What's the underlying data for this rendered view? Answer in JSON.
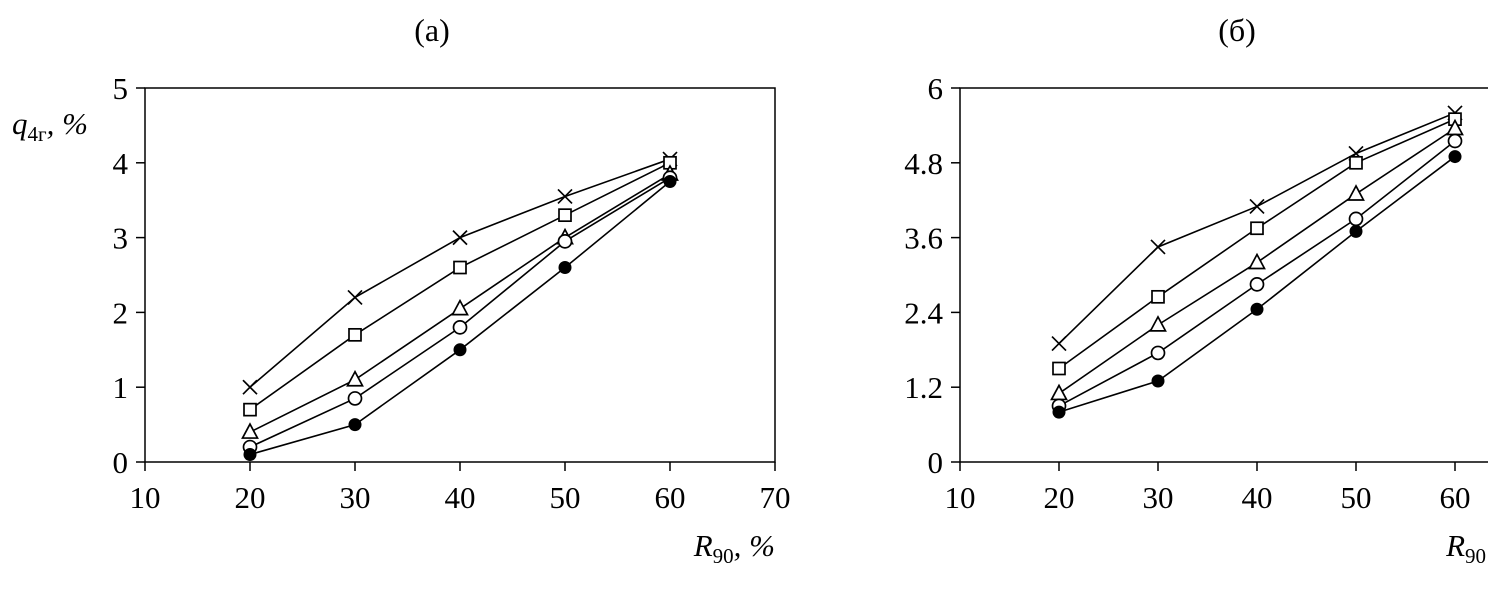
{
  "page": {
    "background": "#ffffff",
    "ink": "#000000"
  },
  "chart_data": [
    {
      "type": "line",
      "title": "(а)",
      "ylabel": {
        "main": "q",
        "sub": "4г",
        "suffix": ", %"
      },
      "xlabel": {
        "main": "R",
        "sub": "90",
        "suffix": ", %"
      },
      "x": [
        20,
        30,
        40,
        50,
        60
      ],
      "xlim": [
        10,
        70
      ],
      "ylim": [
        0,
        5
      ],
      "xticks": [
        10,
        20,
        30,
        40,
        50,
        60,
        70
      ],
      "yticks": [
        0,
        1,
        2,
        3,
        4,
        5
      ],
      "grid": false,
      "legend": "none",
      "color": "#000000",
      "series": [
        {
          "name": "cross",
          "marker": "x",
          "values": [
            1.0,
            2.2,
            3.0,
            3.55,
            4.05
          ]
        },
        {
          "name": "open-square",
          "marker": "square",
          "values": [
            0.7,
            1.7,
            2.6,
            3.3,
            4.0
          ]
        },
        {
          "name": "open-triangle",
          "marker": "triangle",
          "values": [
            0.4,
            1.1,
            2.05,
            3.0,
            3.85
          ]
        },
        {
          "name": "open-circle",
          "marker": "circle-open",
          "values": [
            0.2,
            0.85,
            1.8,
            2.95,
            3.8
          ]
        },
        {
          "name": "filled-circle",
          "marker": "circle-filled",
          "values": [
            0.1,
            0.5,
            1.5,
            2.6,
            3.75
          ]
        }
      ]
    },
    {
      "type": "line",
      "title": "(б)",
      "ylabel": {
        "main": "",
        "sub": "",
        "suffix": ""
      },
      "xlabel": {
        "main": "R",
        "sub": "90",
        "suffix": ""
      },
      "x": [
        20,
        30,
        40,
        50,
        60
      ],
      "xlim": [
        10,
        60
      ],
      "ylim": [
        0,
        6
      ],
      "xticks": [
        10,
        20,
        30,
        40,
        50,
        60
      ],
      "yticks": [
        0,
        1.2,
        2.4,
        3.6,
        4.8,
        6
      ],
      "grid": false,
      "legend": "none",
      "color": "#000000",
      "series": [
        {
          "name": "cross",
          "marker": "x",
          "values": [
            1.9,
            3.45,
            4.1,
            4.95,
            5.6
          ]
        },
        {
          "name": "open-square",
          "marker": "square",
          "values": [
            1.5,
            2.65,
            3.75,
            4.8,
            5.5
          ]
        },
        {
          "name": "open-triangle",
          "marker": "triangle",
          "values": [
            1.1,
            2.2,
            3.2,
            4.3,
            5.35
          ]
        },
        {
          "name": "open-circle",
          "marker": "circle-open",
          "values": [
            0.9,
            1.75,
            2.85,
            3.9,
            5.15
          ]
        },
        {
          "name": "filled-circle",
          "marker": "circle-filled",
          "values": [
            0.8,
            1.3,
            2.45,
            3.7,
            4.9
          ]
        }
      ]
    }
  ]
}
